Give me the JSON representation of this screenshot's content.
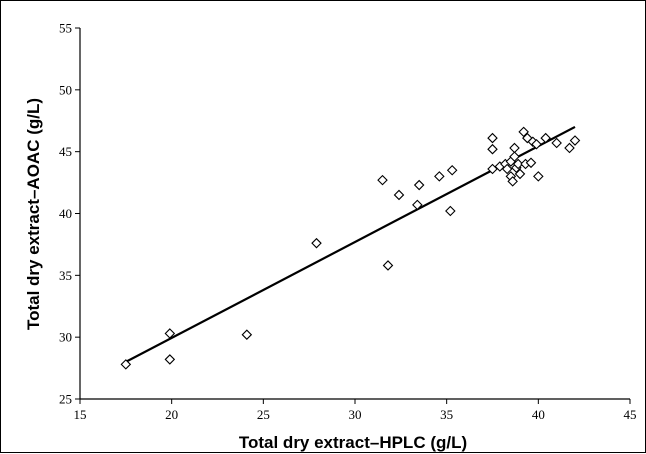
{
  "chart_data": {
    "type": "scatter",
    "title": "",
    "xlabel": "Total dry extract–HPLC (g/L)",
    "ylabel": "Total dry extract–AOAC (g/L)",
    "xlim": [
      15,
      45
    ],
    "ylim": [
      25,
      55
    ],
    "x_ticks": [
      15,
      20,
      25,
      30,
      35,
      40,
      45
    ],
    "y_ticks": [
      25,
      30,
      35,
      40,
      45,
      50,
      55
    ],
    "grid": false,
    "marker": "open-diamond",
    "marker_color": "#000000",
    "line_color": "#000000",
    "series": [
      {
        "points": [
          [
            17.5,
            27.8
          ],
          [
            19.9,
            30.3
          ],
          [
            19.9,
            28.2
          ],
          [
            24.1,
            30.2
          ],
          [
            27.9,
            37.6
          ],
          [
            31.5,
            42.7
          ],
          [
            31.8,
            35.8
          ],
          [
            32.4,
            41.5
          ],
          [
            33.4,
            40.7
          ],
          [
            33.5,
            42.3
          ],
          [
            34.6,
            43.0
          ],
          [
            35.2,
            40.2
          ],
          [
            35.3,
            43.5
          ],
          [
            37.5,
            46.1
          ],
          [
            37.5,
            45.2
          ],
          [
            37.5,
            43.6
          ],
          [
            37.9,
            43.8
          ],
          [
            38.2,
            44.0
          ],
          [
            38.3,
            43.6
          ],
          [
            38.5,
            44.2
          ],
          [
            38.5,
            43.0
          ],
          [
            38.6,
            42.6
          ],
          [
            38.7,
            45.3
          ],
          [
            38.7,
            44.6
          ],
          [
            38.8,
            43.7
          ],
          [
            38.9,
            44.0
          ],
          [
            39.0,
            43.2
          ],
          [
            39.2,
            46.6
          ],
          [
            39.3,
            44.0
          ],
          [
            39.4,
            46.1
          ],
          [
            39.6,
            44.1
          ],
          [
            39.7,
            45.8
          ],
          [
            39.9,
            45.6
          ],
          [
            40.0,
            43.0
          ],
          [
            40.4,
            46.1
          ],
          [
            41.0,
            45.7
          ],
          [
            41.7,
            45.3
          ],
          [
            42.0,
            45.9
          ]
        ],
        "regression_line": [
          [
            17.5,
            28.0
          ],
          [
            42.0,
            47.0
          ]
        ]
      }
    ]
  }
}
